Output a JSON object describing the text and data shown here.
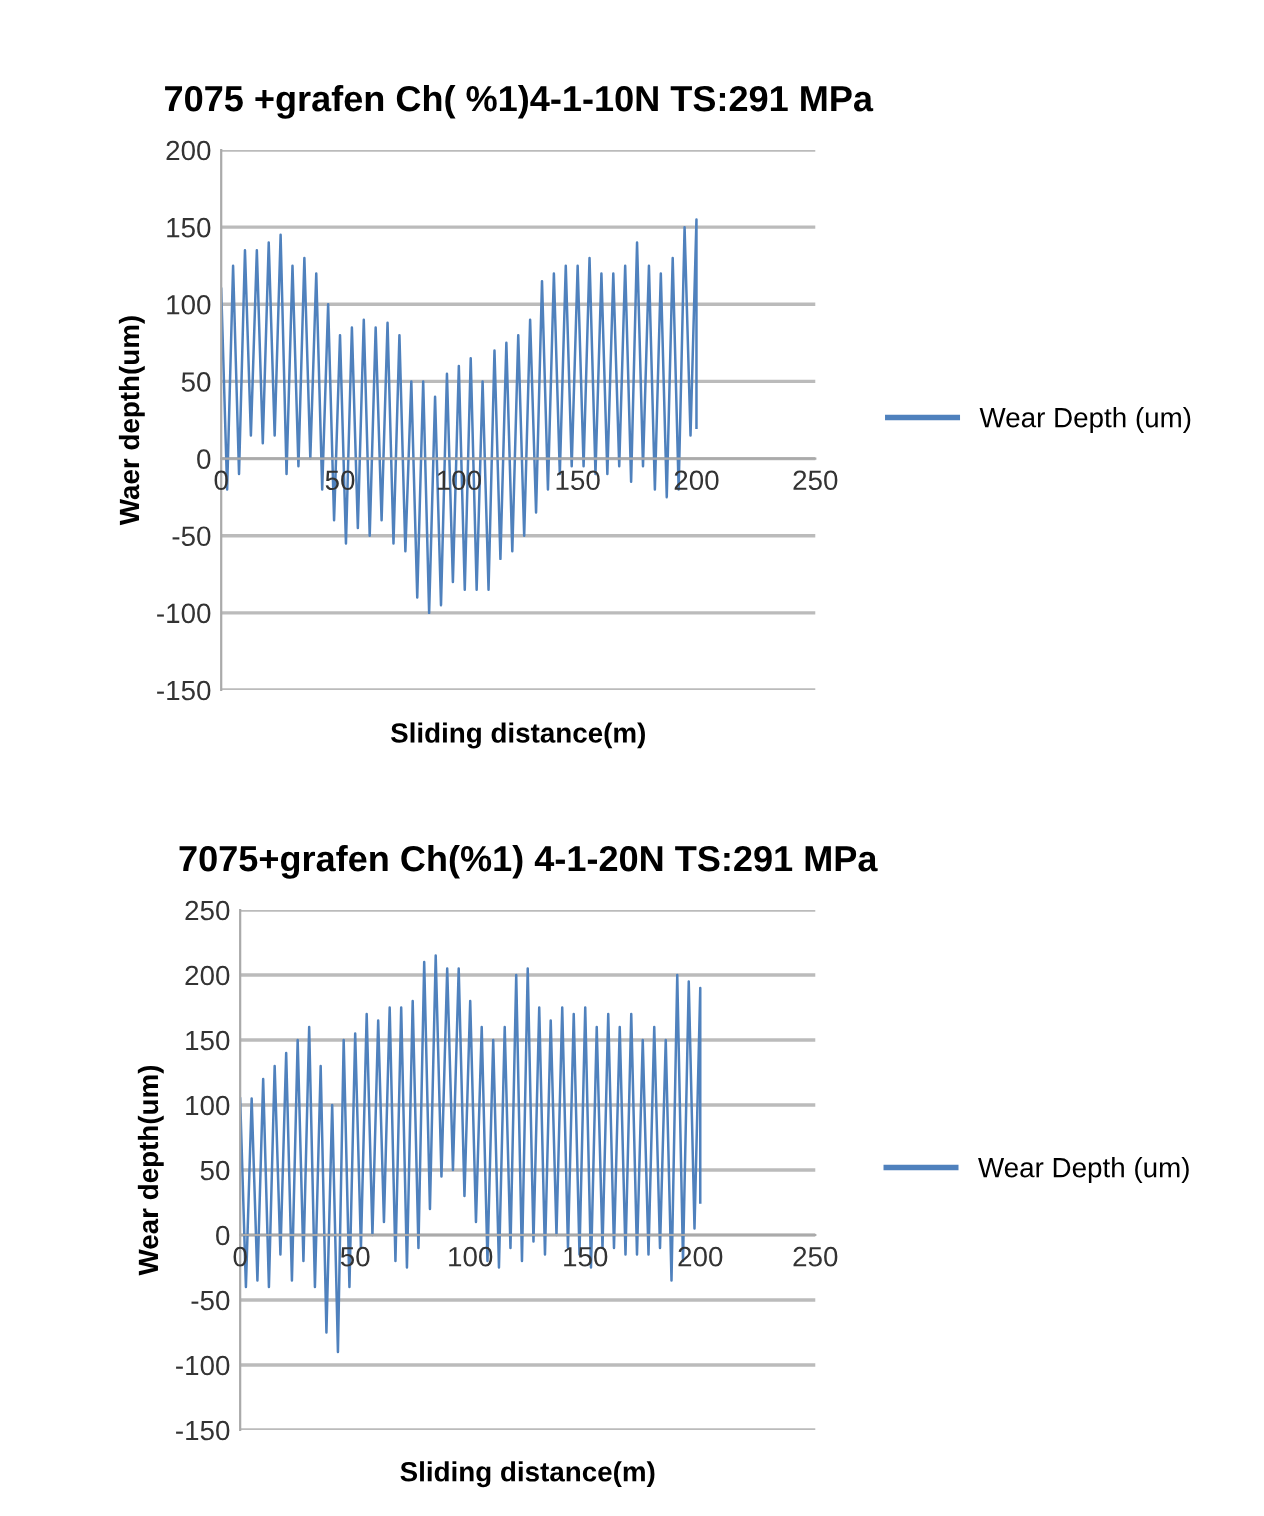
{
  "chart_data": [
    {
      "type": "line",
      "title": "7075 +grafen Ch( %1)4-1-10N TS:291 MPa",
      "xlabel": "Sliding distance(m)",
      "ylabel": "Waer depth(um)",
      "xlim": [
        0,
        250
      ],
      "xticks": [
        0,
        50,
        100,
        150,
        200,
        250
      ],
      "ylim": [
        -150,
        200
      ],
      "yticks": [
        -150,
        -100,
        -50,
        0,
        50,
        100,
        150,
        200
      ],
      "grid": "y",
      "legend": "right",
      "series": [
        {
          "name": "Wear Depth (um)",
          "color": "#4f81bd",
          "x": [
            0,
            2.5,
            5,
            7.5,
            10,
            12.5,
            15,
            17.5,
            20,
            22.5,
            25,
            27.5,
            30,
            32.5,
            35,
            37.5,
            40,
            42.5,
            45,
            47.5,
            50,
            52.5,
            55,
            57.5,
            60,
            62.5,
            65,
            67.5,
            70,
            72.5,
            75,
            77.5,
            80,
            82.5,
            85,
            87.5,
            90,
            92.5,
            95,
            97.5,
            100,
            102.5,
            105,
            107.5,
            110,
            112.5,
            115,
            117.5,
            120,
            122.5,
            125,
            127.5,
            130,
            132.5,
            135,
            137.5,
            140,
            142.5,
            145,
            147.5,
            150,
            152.5,
            155,
            157.5,
            160,
            162.5,
            165,
            167.5,
            170,
            172.5,
            175,
            177.5,
            180,
            182.5,
            185,
            187.5,
            190,
            192.5,
            195,
            197.5,
            200,
            200
          ],
          "values": [
            110,
            -20,
            125,
            -10,
            135,
            15,
            135,
            10,
            140,
            15,
            145,
            -10,
            125,
            -5,
            130,
            0,
            120,
            -20,
            100,
            -40,
            80,
            -55,
            85,
            -45,
            90,
            -50,
            85,
            -40,
            88,
            -55,
            80,
            -60,
            50,
            -90,
            50,
            -100,
            40,
            -95,
            55,
            -80,
            60,
            -85,
            65,
            -85,
            50,
            -85,
            70,
            -65,
            75,
            -60,
            80,
            -50,
            90,
            -35,
            115,
            -20,
            120,
            -10,
            125,
            -5,
            125,
            -5,
            130,
            -10,
            120,
            -10,
            120,
            -5,
            125,
            -15,
            140,
            -5,
            125,
            -20,
            120,
            -25,
            130,
            -20,
            150,
            15,
            155,
            20
          ]
        }
      ]
    },
    {
      "type": "line",
      "title": "7075+grafen Ch(%1) 4-1-20N TS:291 MPa",
      "xlabel": "Sliding distance(m)",
      "ylabel": "Wear depth(um)",
      "xlim": [
        0,
        250
      ],
      "xticks": [
        0,
        50,
        100,
        150,
        200,
        250
      ],
      "ylim": [
        -150,
        250
      ],
      "yticks": [
        -150,
        -100,
        -50,
        0,
        50,
        100,
        150,
        200,
        250
      ],
      "grid": "y",
      "legend": "right",
      "series": [
        {
          "name": "Wear Depth (um)",
          "color": "#4f81bd",
          "x": [
            0,
            2.5,
            5,
            7.5,
            10,
            12.5,
            15,
            17.5,
            20,
            22.5,
            25,
            27.5,
            30,
            32.5,
            35,
            37.5,
            40,
            42.5,
            45,
            47.5,
            50,
            52.5,
            55,
            57.5,
            60,
            62.5,
            65,
            67.5,
            70,
            72.5,
            75,
            77.5,
            80,
            82.5,
            85,
            87.5,
            90,
            92.5,
            95,
            97.5,
            100,
            102.5,
            105,
            107.5,
            110,
            112.5,
            115,
            117.5,
            120,
            122.5,
            125,
            127.5,
            130,
            132.5,
            135,
            137.5,
            140,
            142.5,
            145,
            147.5,
            150,
            152.5,
            155,
            157.5,
            160,
            162.5,
            165,
            167.5,
            170,
            172.5,
            175,
            177.5,
            180,
            182.5,
            185,
            187.5,
            190,
            192.5,
            195,
            197.5,
            200,
            200
          ],
          "values": [
            105,
            -40,
            105,
            -35,
            120,
            -40,
            130,
            -15,
            140,
            -35,
            150,
            -20,
            160,
            -40,
            130,
            -75,
            100,
            -90,
            150,
            -40,
            155,
            -10,
            170,
            0,
            165,
            10,
            175,
            -20,
            175,
            -25,
            180,
            -10,
            210,
            20,
            215,
            45,
            205,
            50,
            205,
            30,
            180,
            10,
            160,
            -20,
            150,
            -25,
            160,
            -10,
            200,
            -20,
            205,
            -5,
            175,
            -15,
            165,
            0,
            175,
            -10,
            170,
            -15,
            175,
            -25,
            160,
            -10,
            170,
            -10,
            160,
            -15,
            170,
            -15,
            150,
            -15,
            160,
            -10,
            150,
            -35,
            200,
            -20,
            195,
            5,
            190,
            25
          ]
        }
      ]
    }
  ]
}
